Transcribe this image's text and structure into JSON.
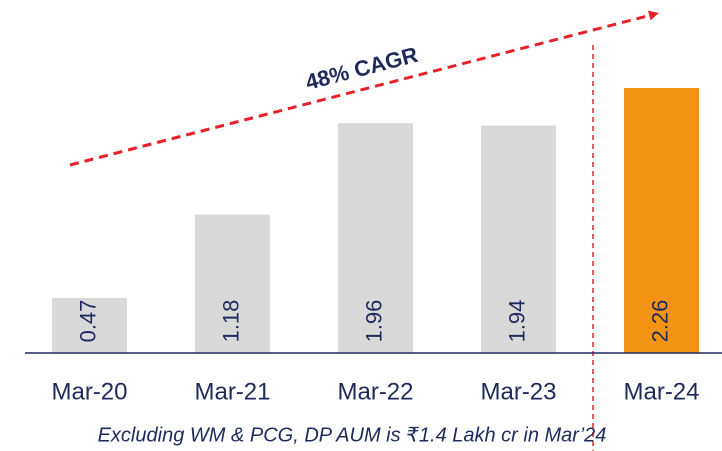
{
  "chart_data": {
    "type": "bar",
    "categories": [
      "Mar-20",
      "Mar-21",
      "Mar-22",
      "Mar-23",
      "Mar-24"
    ],
    "values": [
      0.47,
      1.18,
      1.96,
      1.94,
      2.26
    ],
    "colors": [
      "#d9d9d9",
      "#d9d9d9",
      "#d9d9d9",
      "#d9d9d9",
      "#f39314"
    ],
    "annotation": "48% CAGR",
    "footnote": "Excluding WM & PCG, DP AUM is ₹1.4 Lakh cr in Mar’24"
  }
}
